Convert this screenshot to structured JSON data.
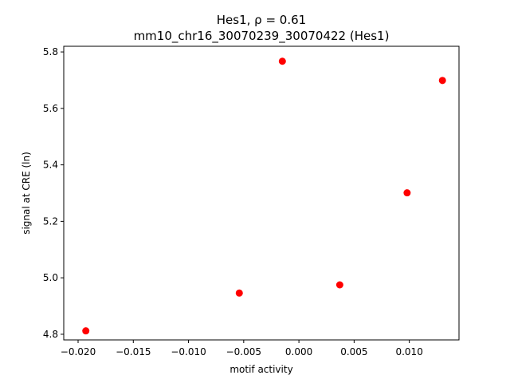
{
  "chart_data": {
    "type": "scatter",
    "title_line1": "Hes1, ρ = 0.61",
    "title_line2": "mm10_chr16_30070239_30070422 (Hes1)",
    "xlabel": "motif activity",
    "ylabel": "signal at CRE (ln)",
    "xlim": [
      -0.0213,
      0.0145
    ],
    "ylim": [
      4.78,
      5.82
    ],
    "xticks": [
      -0.02,
      -0.015,
      -0.01,
      -0.005,
      0.0,
      0.005,
      0.01
    ],
    "xtick_labels": [
      "−0.020",
      "−0.015",
      "−0.010",
      "−0.005",
      "0.000",
      "0.005",
      "0.010"
    ],
    "yticks": [
      4.8,
      5.0,
      5.2,
      5.4,
      5.6,
      5.8
    ],
    "ytick_labels": [
      "4.8",
      "5.0",
      "5.2",
      "5.4",
      "5.6",
      "5.8"
    ],
    "marker_color": "#ff0000",
    "grid": false,
    "points": [
      {
        "x": -0.0193,
        "y": 4.812
      },
      {
        "x": -0.0054,
        "y": 4.946
      },
      {
        "x": -0.0015,
        "y": 5.767
      },
      {
        "x": 0.0037,
        "y": 4.975
      },
      {
        "x": 0.0098,
        "y": 5.301
      },
      {
        "x": 0.013,
        "y": 5.699
      }
    ]
  }
}
